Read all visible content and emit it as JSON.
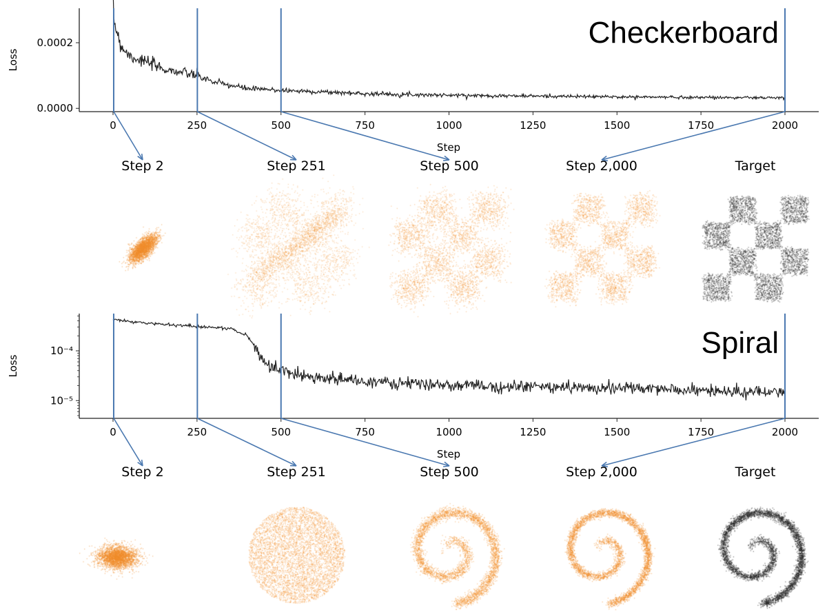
{
  "colors": {
    "accent": "#4a78b0",
    "sample": "#f28e2b",
    "target": "#222222",
    "loss": "#222222"
  },
  "chart_data": [
    {
      "type": "line",
      "title": "Checkerboard",
      "xlabel": "Step",
      "ylabel": "Loss",
      "yscale": "linear",
      "xlim": [
        -100,
        2100
      ],
      "ylim": [
        -1e-05,
        0.000305
      ],
      "xticks": [
        0,
        250,
        500,
        750,
        1000,
        1250,
        1500,
        1750,
        2000
      ],
      "xtick_labels": [
        "0",
        "250",
        "500",
        "750",
        "1000",
        "1250",
        "1500",
        "1750",
        "2000"
      ],
      "yticks": [
        0,
        0.0002
      ],
      "ytick_labels": [
        "0.0000",
        "0.0002"
      ],
      "x": [
        0,
        10,
        25,
        50,
        100,
        150,
        200,
        250,
        300,
        400,
        500,
        750,
        1000,
        1500,
        2000
      ],
      "y": [
        0.00029,
        0.00024,
        0.00019,
        0.00016,
        0.00014,
        0.00012,
        0.00011,
        0.0001,
        8e-05,
        6e-05,
        5.5e-05,
        4.5e-05,
        4e-05,
        3.5e-05,
        3.2e-05
      ],
      "markers": [
        2,
        251,
        500,
        2000
      ],
      "snapshots": [
        "Step 2",
        "Step 251",
        "Step 500",
        "Step 2,000",
        "Target"
      ]
    },
    {
      "type": "line",
      "title": "Spiral",
      "xlabel": "Step",
      "ylabel": "Loss",
      "yscale": "log",
      "xlim": [
        -100,
        2100
      ],
      "ylim": [
        4.4e-06,
        0.00056
      ],
      "xticks": [
        0,
        250,
        500,
        750,
        1000,
        1250,
        1500,
        1750,
        2000
      ],
      "xtick_labels": [
        "0",
        "250",
        "500",
        "750",
        "1000",
        "1250",
        "1500",
        "1750",
        "2000"
      ],
      "yticks": [
        1e-05,
        0.0001
      ],
      "ytick_labels": [
        "10⁻⁵",
        "10⁻⁴"
      ],
      "x": [
        0,
        100,
        250,
        350,
        400,
        430,
        460,
        500,
        600,
        750,
        1000,
        1500,
        2000
      ],
      "y": [
        0.00042,
        0.00036,
        0.00031,
        0.00028,
        0.0002,
        0.0001,
        5e-05,
        4e-05,
        3e-05,
        2.4e-05,
        2e-05,
        1.8e-05,
        1.4e-05
      ],
      "markers": [
        2,
        251,
        500,
        2000
      ],
      "snapshots": [
        "Step 2",
        "Step 251",
        "Step 500",
        "Step 2,000",
        "Target"
      ]
    }
  ]
}
